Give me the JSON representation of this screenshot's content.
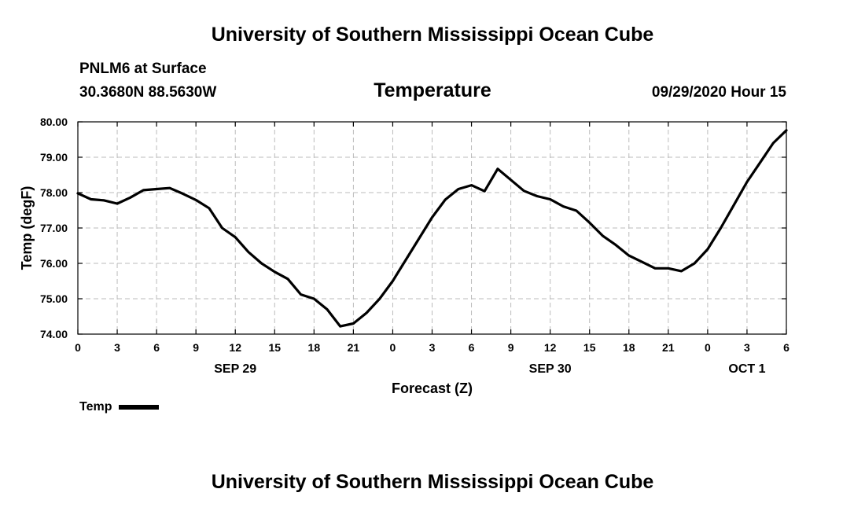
{
  "header": {
    "banner_top": "University of Southern Mississippi Ocean Cube",
    "station": "PNLM6 at Surface",
    "coords": "30.3680N 88.5630W",
    "title": "Temperature",
    "datetime": "09/29/2020 Hour 15"
  },
  "footer": {
    "banner_bottom": "University of Southern Mississippi Ocean Cube"
  },
  "chart_data": {
    "type": "line",
    "title": "Temperature",
    "xlabel": "Forecast (Z)",
    "ylabel": "Temp (degF)",
    "x_unit": "hours from 09/29/2020 00Z",
    "xlim": [
      0,
      54
    ],
    "ylim": [
      74,
      80
    ],
    "grid": true,
    "x_ticks": [
      {
        "x": 0,
        "label": "0"
      },
      {
        "x": 3,
        "label": "3"
      },
      {
        "x": 6,
        "label": "6"
      },
      {
        "x": 9,
        "label": "9"
      },
      {
        "x": 12,
        "label": "12"
      },
      {
        "x": 15,
        "label": "15"
      },
      {
        "x": 18,
        "label": "18"
      },
      {
        "x": 21,
        "label": "21"
      },
      {
        "x": 24,
        "label": "0"
      },
      {
        "x": 27,
        "label": "3"
      },
      {
        "x": 30,
        "label": "6"
      },
      {
        "x": 33,
        "label": "9"
      },
      {
        "x": 36,
        "label": "12"
      },
      {
        "x": 39,
        "label": "15"
      },
      {
        "x": 42,
        "label": "18"
      },
      {
        "x": 45,
        "label": "21"
      },
      {
        "x": 48,
        "label": "0"
      },
      {
        "x": 51,
        "label": "3"
      },
      {
        "x": 54,
        "label": "6"
      }
    ],
    "y_ticks": [
      {
        "y": 74,
        "label": "74.00"
      },
      {
        "y": 75,
        "label": "75.00"
      },
      {
        "y": 76,
        "label": "76.00"
      },
      {
        "y": 77,
        "label": "77.00"
      },
      {
        "y": 78,
        "label": "78.00"
      },
      {
        "y": 79,
        "label": "79.00"
      },
      {
        "y": 80,
        "label": "80.00"
      }
    ],
    "date_labels": [
      {
        "x": 12,
        "label": "SEP 29"
      },
      {
        "x": 36,
        "label": "SEP 30"
      },
      {
        "x": 51,
        "label": "OCT 1"
      }
    ],
    "legend": "bottom-left",
    "series": [
      {
        "name": "Temp",
        "color": "#000000",
        "x": [
          0,
          1,
          2,
          3,
          4,
          5,
          6,
          7,
          8,
          9,
          10,
          11,
          12,
          13,
          14,
          15,
          16,
          17,
          18,
          19,
          20,
          21,
          22,
          23,
          24,
          25,
          26,
          27,
          28,
          29,
          30,
          31,
          32,
          33,
          34,
          35,
          36,
          37,
          38,
          39,
          40,
          41,
          42,
          43,
          44,
          45,
          46,
          47,
          48,
          49,
          50,
          51,
          52,
          53,
          54
        ],
        "y": [
          77.98,
          77.81,
          77.78,
          77.69,
          77.86,
          78.07,
          78.1,
          78.13,
          77.97,
          77.79,
          77.56,
          77.0,
          76.74,
          76.32,
          76.0,
          75.76,
          75.56,
          75.12,
          75.0,
          74.7,
          74.22,
          74.3,
          74.6,
          75.0,
          75.5,
          76.1,
          76.7,
          77.3,
          77.8,
          78.1,
          78.21,
          78.04,
          78.67,
          78.36,
          78.05,
          77.9,
          77.81,
          77.61,
          77.49,
          77.15,
          76.78,
          76.52,
          76.22,
          76.04,
          75.86,
          75.86,
          75.78,
          76.0,
          76.4,
          77.0,
          77.65,
          78.3,
          78.85,
          79.4,
          79.76
        ]
      }
    ]
  }
}
